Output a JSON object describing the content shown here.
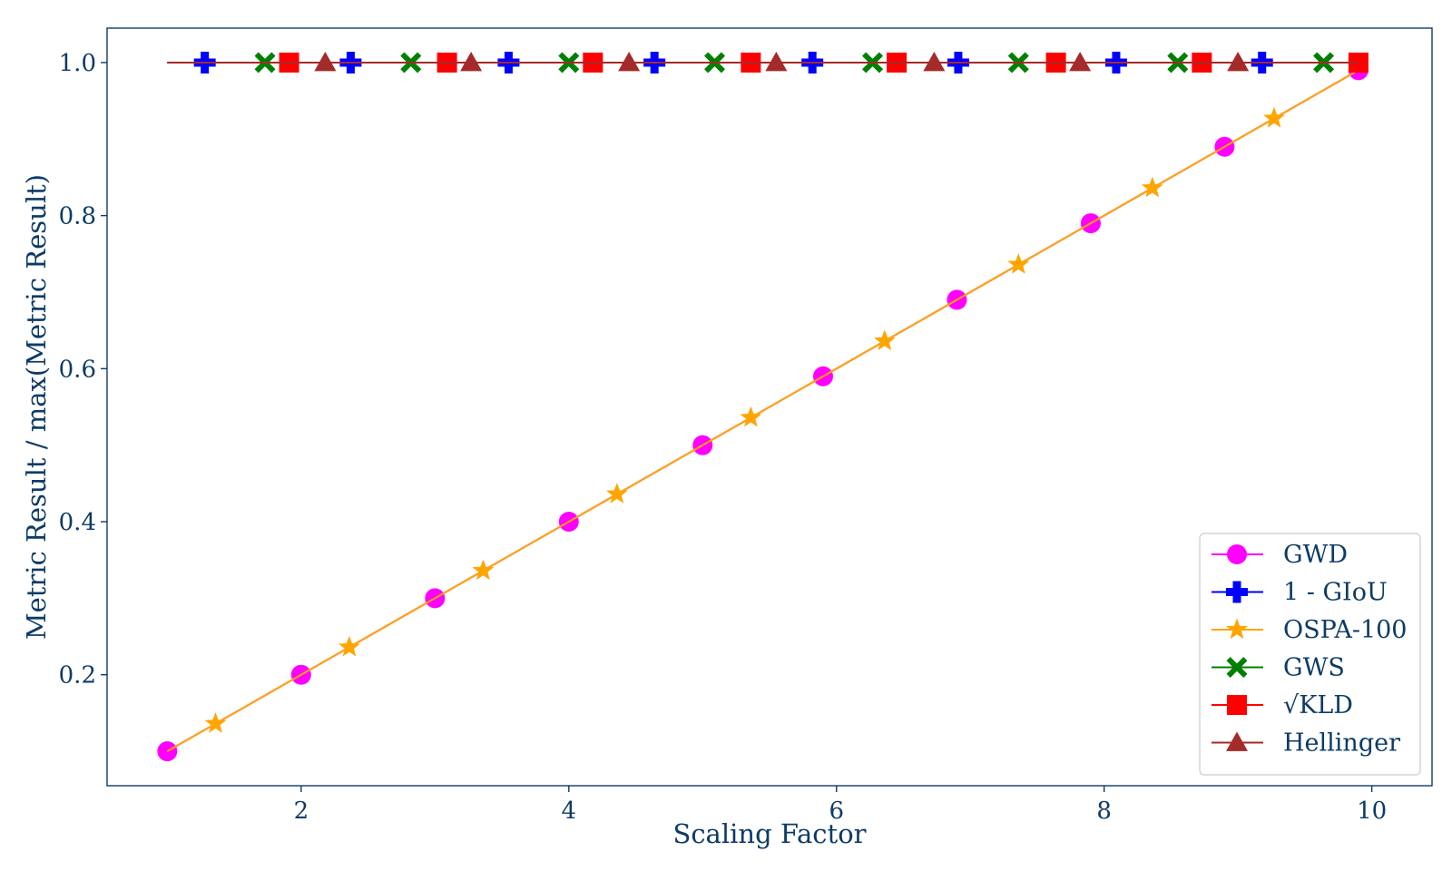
{
  "chart_data": {
    "type": "line",
    "title": "",
    "xlabel": "Scaling Factor",
    "ylabel": "Metric Result / max(Metric Result)",
    "xlim": [
      0.55,
      10.45
    ],
    "ylim": [
      0.055,
      1.045
    ],
    "x_ticks": [
      2,
      4,
      6,
      8,
      10
    ],
    "x_tick_labels": [
      "2",
      "4",
      "6",
      "8",
      "10"
    ],
    "y_ticks": [
      0.2,
      0.4,
      0.6,
      0.8,
      1.0
    ],
    "y_tick_labels": [
      "0.2",
      "0.4",
      "0.6",
      "0.8",
      "1.0"
    ],
    "grid": false,
    "legend_position": "bottom-right",
    "axis_color": "#0d3b66",
    "series": [
      {
        "name": "GWD",
        "color": "#ff00ff",
        "marker": "circle",
        "line": [
          [
            1,
            0.1
          ],
          [
            9.9,
            0.99
          ]
        ],
        "marker_x": [
          1,
          2,
          3,
          4,
          5,
          5.9,
          6.9,
          7.9,
          8.9,
          9.9
        ],
        "marker_y": [
          0.1,
          0.2,
          0.3,
          0.4,
          0.5,
          0.59,
          0.69,
          0.79,
          0.89,
          0.99
        ]
      },
      {
        "name": "1 - GIoU",
        "color": "#0000ff",
        "marker": "plus",
        "line": [
          [
            1,
            1.0
          ],
          [
            9.9,
            1.0
          ]
        ],
        "marker_x": [
          1.28,
          2.37,
          3.55,
          4.64,
          5.82,
          6.91,
          8.09,
          9.18
        ],
        "marker_y": [
          1,
          1,
          1,
          1,
          1,
          1,
          1,
          1
        ]
      },
      {
        "name": "OSPA-100",
        "color": "#ffa500",
        "marker": "star",
        "line": [
          [
            1,
            0.1
          ],
          [
            9.9,
            0.99
          ]
        ],
        "marker_x": [
          1.36,
          2.36,
          3.36,
          4.36,
          5.36,
          6.36,
          7.36,
          8.36,
          9.27
        ],
        "marker_y": [
          0.136,
          0.236,
          0.336,
          0.436,
          0.536,
          0.636,
          0.736,
          0.836,
          0.927
        ]
      },
      {
        "name": "GWS",
        "color": "#008000",
        "marker": "x",
        "line": [
          [
            1,
            1.0
          ],
          [
            9.9,
            1.0
          ]
        ],
        "marker_x": [
          1.73,
          2.82,
          4.0,
          5.09,
          6.27,
          7.36,
          8.55,
          9.64
        ],
        "marker_y": [
          1,
          1,
          1,
          1,
          1,
          1,
          1,
          1
        ]
      },
      {
        "name": "√KLD",
        "color": "#ff0000",
        "marker": "square",
        "line": [
          [
            1,
            1.0
          ],
          [
            9.9,
            1.0
          ]
        ],
        "marker_x": [
          1.91,
          3.09,
          4.18,
          5.36,
          6.45,
          7.64,
          8.73,
          9.9
        ],
        "marker_y": [
          1,
          1,
          1,
          1,
          1,
          1,
          1,
          1
        ]
      },
      {
        "name": "Hellinger",
        "color": "#a52a2a",
        "marker": "triangle",
        "line": [
          [
            1,
            1.0
          ],
          [
            9.9,
            1.0
          ]
        ],
        "marker_x": [
          2.18,
          3.27,
          4.45,
          5.55,
          6.73,
          7.82,
          9.0
        ],
        "marker_y": [
          1,
          1,
          1,
          1,
          1,
          1,
          1
        ]
      }
    ]
  }
}
